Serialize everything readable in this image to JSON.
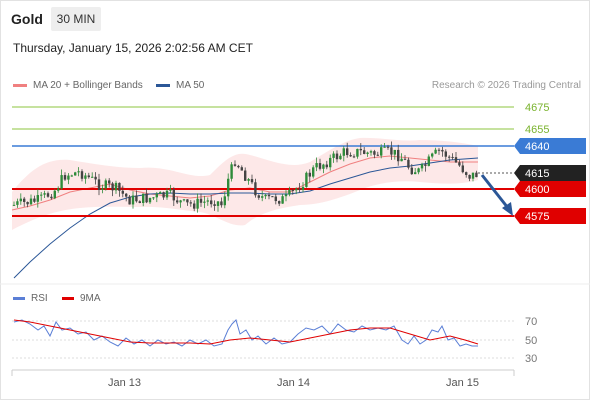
{
  "header": {
    "symbol": "Gold",
    "interval": "30 MIN",
    "datetime": "Thursday, January 15, 2026 2:02:56 AM CET"
  },
  "legend": {
    "items": [
      {
        "label": "MA 20 + Bollinger Bands",
        "color": "#f08080"
      },
      {
        "label": "MA 50",
        "color": "#2b5797"
      }
    ],
    "research": "Research © 2026 Trading Central"
  },
  "price_levels": [
    {
      "value": "4675",
      "kind": "target",
      "color": "#8cc63f"
    },
    {
      "value": "4655",
      "kind": "target",
      "color": "#8cc63f"
    },
    {
      "value": "4640",
      "kind": "pivot",
      "color": "#3a7bd5"
    },
    {
      "value": "4615",
      "kind": "last",
      "color": "#222222"
    },
    {
      "value": "4600",
      "kind": "support",
      "color": "#e00000"
    },
    {
      "value": "4575",
      "kind": "support",
      "color": "#e00000"
    }
  ],
  "rsi_panel": {
    "legend": [
      {
        "label": "RSI",
        "color": "#5b7fd6"
      },
      {
        "label": "9MA",
        "color": "#e00000"
      }
    ],
    "levels": [
      "70",
      "50",
      "30"
    ]
  },
  "x_axis": {
    "labels": [
      "Jan 13",
      "Jan 14",
      "Jan 15"
    ]
  }
}
